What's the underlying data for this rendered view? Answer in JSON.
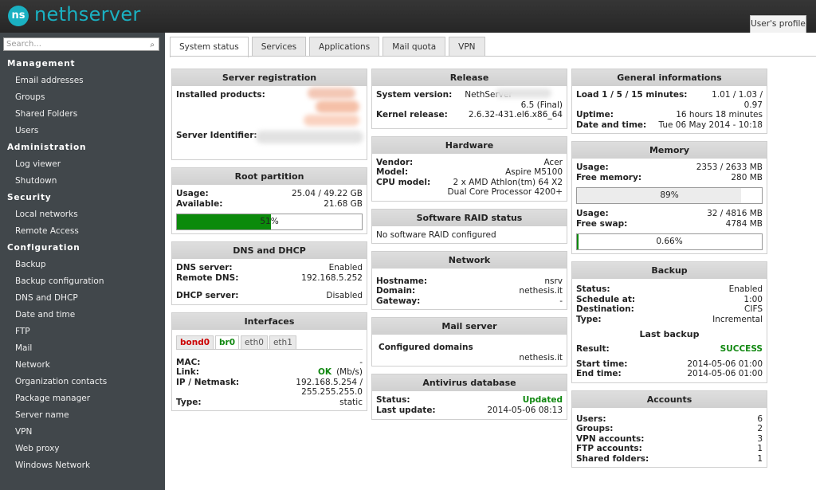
{
  "header": {
    "logo_mark": "ns",
    "logo": "nethserver",
    "profile": "User's profile"
  },
  "sidebar": {
    "search_placeholder": "Search...",
    "sections": [
      {
        "title": "Management",
        "items": [
          "Email addresses",
          "Groups",
          "Shared Folders",
          "Users"
        ]
      },
      {
        "title": "Administration",
        "items": [
          "Log viewer",
          "Shutdown"
        ]
      },
      {
        "title": "Security",
        "items": [
          "Local networks",
          "Remote Access"
        ]
      },
      {
        "title": "Configuration",
        "items": [
          "Backup",
          "Backup configuration",
          "DNS and DHCP",
          "Date and time",
          "FTP",
          "Mail",
          "Network",
          "Organization contacts",
          "Package manager",
          "Server name",
          "VPN",
          "Web proxy",
          "Windows Network"
        ]
      }
    ]
  },
  "tabs": {
    "items": [
      "System status",
      "Services",
      "Applications",
      "Mail quota",
      "VPN"
    ],
    "active": 0
  },
  "columns": [
    {
      "panels": [
        {
          "title": "Server registration",
          "sections": [
            {
              "rows": [
                {
                  "label": "Installed products:"
                }
              ]
            },
            {
              "rows": [
                {
                  "label": "Server Identifier:"
                }
              ]
            }
          ]
        },
        {
          "title": "Root partition",
          "sections": [
            {
              "rows": [
                {
                  "label": "Usage:",
                  "value": "25.04 / 49.22 GB"
                },
                {
                  "label": "Available:",
                  "value": "21.68 GB"
                }
              ]
            },
            {
              "progress": {
                "value": 51,
                "label": "51%",
                "color": "#0b8a0b"
              }
            }
          ]
        },
        {
          "title": "DNS and DHCP",
          "sections": [
            {
              "rows": [
                {
                  "label": "DNS server:",
                  "value": "Enabled"
                },
                {
                  "label": "Remote DNS:",
                  "value": "192.168.5.252"
                }
              ]
            },
            {
              "rows": [
                {
                  "label": "DHCP server:",
                  "value": "Disabled"
                }
              ]
            }
          ]
        },
        {
          "title": "Interfaces",
          "sections": [
            {
              "tabs": [
                {
                  "name": "bond0",
                  "color": "#cc0000"
                },
                {
                  "name": "br0",
                  "color": "#118811"
                },
                {
                  "name": "eth0",
                  "color": "#555555"
                },
                {
                  "name": "eth1",
                  "color": "#555555"
                }
              ],
              "active": 1
            },
            {
              "rows": [
                {
                  "label": "MAC:",
                  "value": "-"
                },
                {
                  "label": "Link:",
                  "value": "OK",
                  "color": "#118811",
                  "unit": "(Mb/s)"
                },
                {
                  "label": "IP / Netmask:",
                  "value": "192.168.5.254 / 255.255.255.0"
                },
                {
                  "label": "Type:",
                  "value": "static"
                }
              ]
            }
          ]
        }
      ]
    },
    {
      "panels": [
        {
          "title": "Release",
          "sections": [
            {
              "rows": [
                {
                  "label": "System version:",
                  "value": "NethServer"
                },
                {
                  "value": "6.5 (Final)"
                },
                {
                  "label": "Kernel release:",
                  "value": "2.6.32-431.el6.x86_64"
                }
              ]
            }
          ]
        },
        {
          "title": "Hardware",
          "sections": [
            {
              "rows": [
                {
                  "label": "Vendor:",
                  "value": "Acer"
                },
                {
                  "label": "Model:",
                  "value": "Aspire M5100"
                },
                {
                  "label": "CPU model:",
                  "value": "2 x AMD Athlon(tm) 64 X2 Dual Core Processor 4200+"
                }
              ]
            }
          ]
        },
        {
          "title": "Software RAID status",
          "sections": [
            {
              "text": "No software RAID configured"
            }
          ]
        },
        {
          "title": "Network",
          "sections": [
            {
              "rows": [
                {
                  "label": "Hostname:",
                  "value": "nsrv"
                },
                {
                  "label": "Domain:",
                  "value": "nethesis.it"
                },
                {
                  "label": "Gateway:",
                  "value": "-"
                }
              ]
            }
          ]
        },
        {
          "title": "Mail server",
          "sections": [
            {
              "rows": [
                {
                  "label": "Configured domains"
                },
                {
                  "value": "nethesis.it"
                }
              ]
            }
          ]
        },
        {
          "title": "Antivirus database",
          "sections": [
            {
              "rows": [
                {
                  "label": "Status:",
                  "value": "Updated",
                  "color": "#118811"
                },
                {
                  "label": "Last update:",
                  "value": "2014-05-06 08:13"
                }
              ]
            }
          ]
        }
      ]
    },
    {
      "panels": [
        {
          "title": "General informations",
          "sections": [
            {
              "rows": [
                {
                  "label": "Load 1 / 5 / 15 minutes:",
                  "value": "1.01 / 1.03 / 0.97"
                },
                {
                  "label": "Uptime:",
                  "value": "16 hours 18 minutes"
                },
                {
                  "label": "Date and time:",
                  "value": "Tue 06 May 2014 - 10:18"
                }
              ]
            }
          ]
        },
        {
          "title": "Memory",
          "sections": [
            {
              "rows": [
                {
                  "label": "Usage:",
                  "value": "2353 / 2633 MB"
                },
                {
                  "label": "Free memory:",
                  "value": "280 MB"
                }
              ]
            },
            {
              "progress": {
                "value": 89,
                "label": "89%",
                "color": "#ececec"
              }
            },
            {
              "rows": [
                {
                  "label": "Usage:",
                  "value": "32 / 4816 MB"
                },
                {
                  "label": "Free swap:",
                  "value": "4784 MB"
                }
              ]
            },
            {
              "progress": {
                "value": 0.66,
                "label": "0.66%",
                "color": "#0b8a0b"
              }
            }
          ]
        },
        {
          "title": "Backup",
          "sections": [
            {
              "rows": [
                {
                  "label": "Status:",
                  "value": "Enabled"
                },
                {
                  "label": "Schedule at:",
                  "value": "1:00"
                },
                {
                  "label": "Destination:",
                  "value": "CIFS"
                },
                {
                  "label": "Type:",
                  "value": "Incremental"
                }
              ]
            },
            {
              "subtitle": "Last backup"
            },
            {
              "rows": [
                {
                  "label": "Result:",
                  "value": "SUCCESS",
                  "color": "#118811"
                }
              ]
            },
            {
              "rows": [
                {
                  "label": "Start time:",
                  "value": "2014-05-06 01:00"
                },
                {
                  "label": "End time:",
                  "value": "2014-05-06 01:00"
                }
              ]
            }
          ]
        },
        {
          "title": "Accounts",
          "sections": [
            {
              "rows": [
                {
                  "label": "Users:",
                  "value": "6"
                },
                {
                  "label": "Groups:",
                  "value": "2"
                },
                {
                  "label": "VPN accounts:",
                  "value": "3"
                },
                {
                  "label": "FTP accounts:",
                  "value": "1"
                },
                {
                  "label": "Shared folders:",
                  "value": "1"
                }
              ]
            }
          ]
        }
      ]
    }
  ]
}
